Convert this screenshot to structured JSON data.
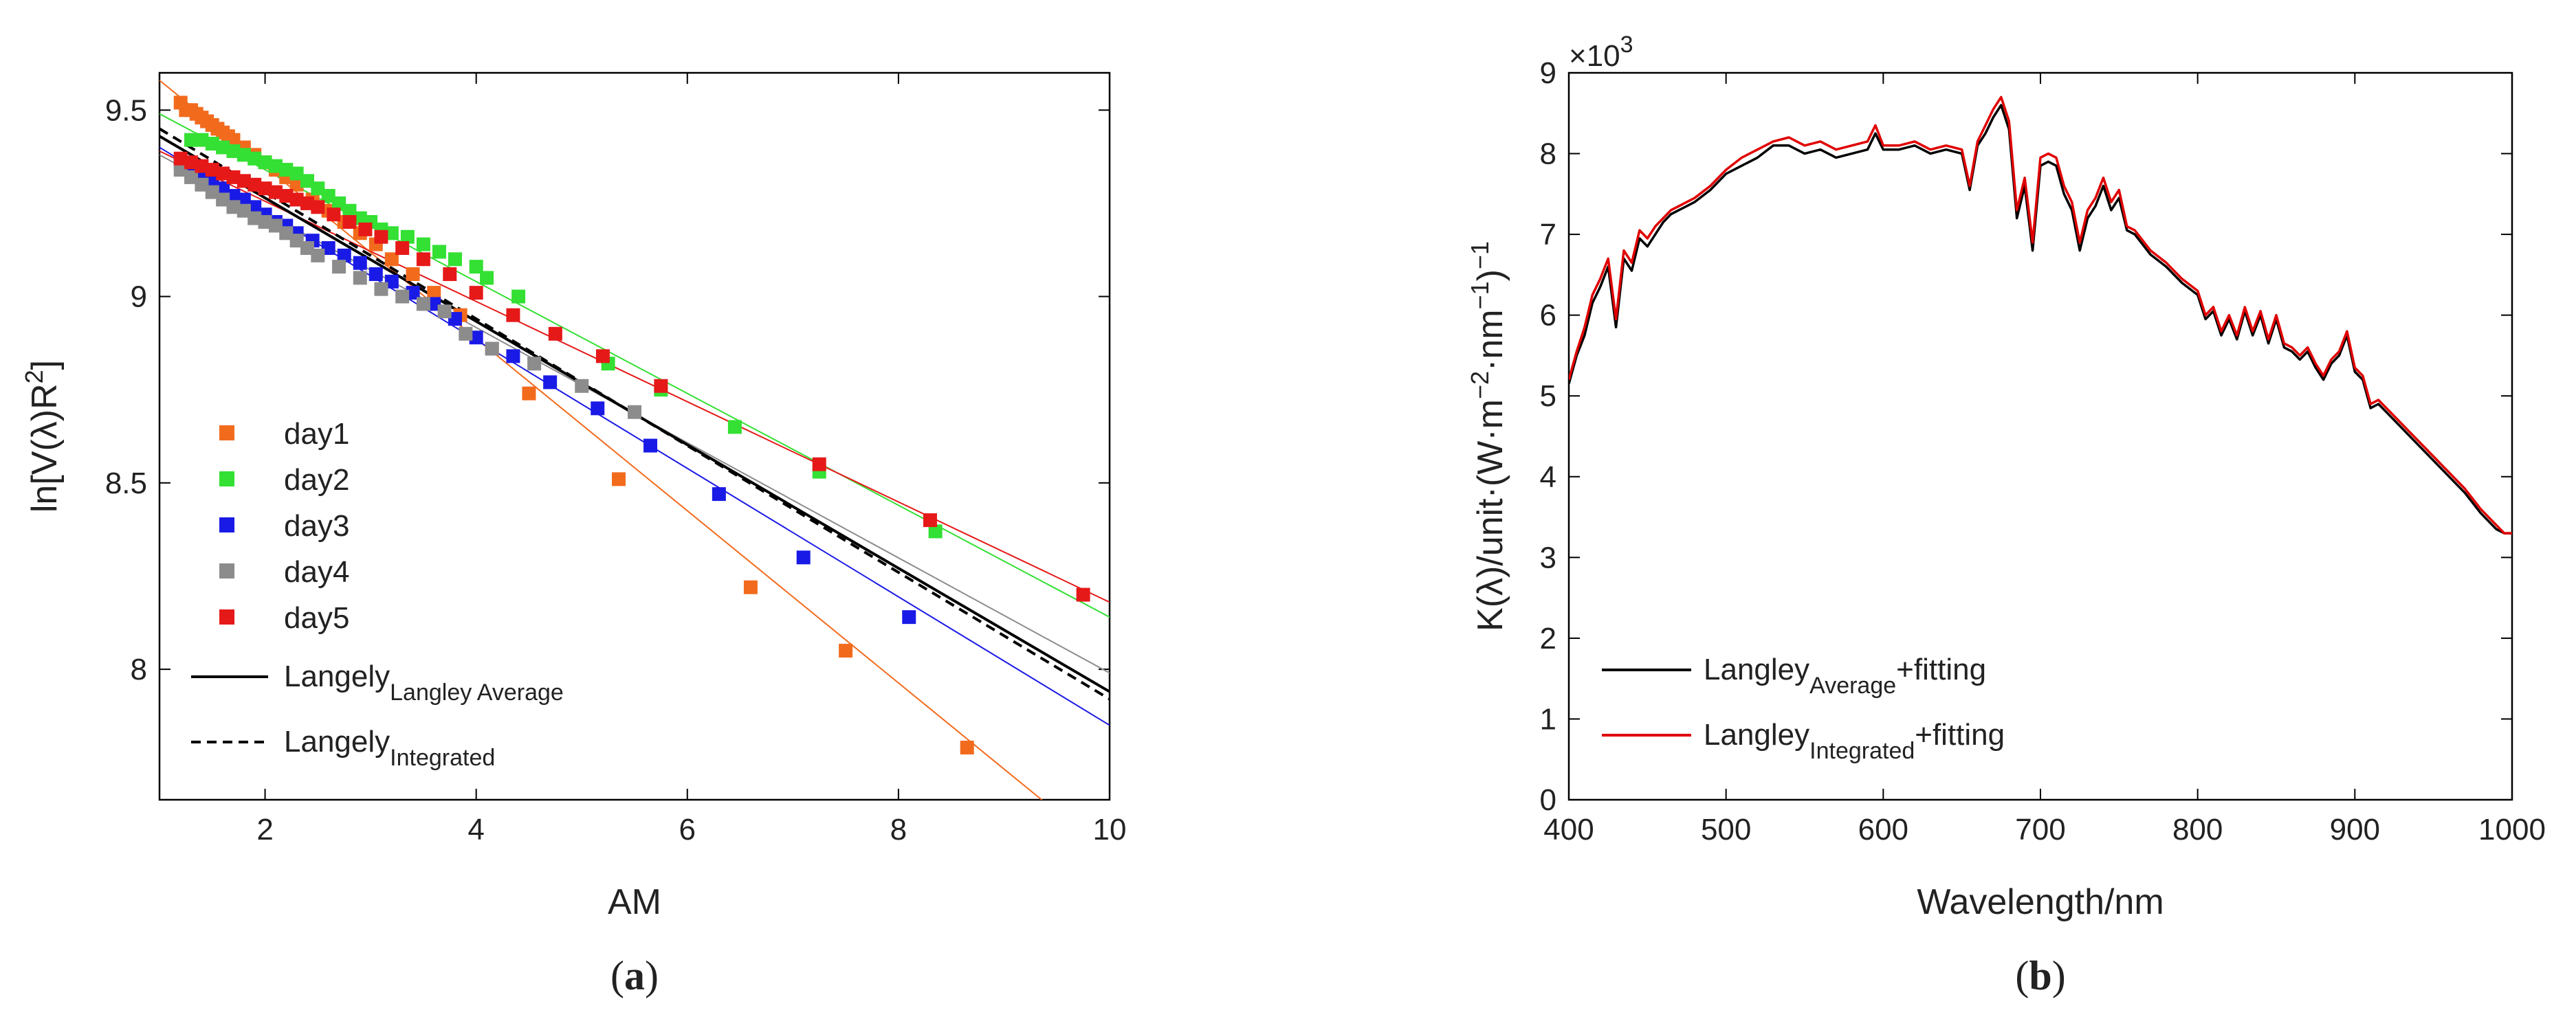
{
  "chart_data": [
    {
      "type": "scatter",
      "panel_label": "a",
      "xlabel": "AM",
      "ylabel": "ln[V(λ)R²]",
      "ylabel_parts": {
        "main": "ln[V(λ)R",
        "sup": "2",
        "end": "]"
      },
      "xlim": [
        1,
        10
      ],
      "ylim": [
        7.65,
        9.6
      ],
      "xticks": [
        2,
        4,
        6,
        8,
        10
      ],
      "yticks": [
        8,
        8.5,
        9,
        9.5
      ],
      "grid": false,
      "legend_position": "lower-left",
      "series": [
        {
          "name": "day1",
          "color": "#f26b1d",
          "marker": "square",
          "x": [
            1.2,
            1.25,
            1.3,
            1.35,
            1.4,
            1.45,
            1.5,
            1.55,
            1.6,
            1.65,
            1.7,
            1.8,
            1.9,
            2.0,
            2.1,
            2.2,
            2.3,
            2.45,
            2.6,
            2.75,
            2.9,
            3.05,
            3.2,
            3.4,
            3.6,
            3.85,
            4.15,
            4.5,
            5.35,
            6.6,
            7.5,
            8.65
          ],
          "y": [
            9.52,
            9.5,
            9.5,
            9.49,
            9.48,
            9.47,
            9.46,
            9.45,
            9.44,
            9.43,
            9.42,
            9.4,
            9.38,
            9.36,
            9.34,
            9.32,
            9.3,
            9.26,
            9.23,
            9.2,
            9.17,
            9.14,
            9.1,
            9.06,
            9.01,
            8.95,
            8.86,
            8.74,
            8.51,
            8.22,
            8.05,
            7.79
          ],
          "fit": [
            [
              1.0,
              9.58
            ],
            [
              9.4,
              7.64
            ]
          ]
        },
        {
          "name": "day2",
          "color": "#33e033",
          "marker": "square",
          "x": [
            1.3,
            1.4,
            1.5,
            1.6,
            1.7,
            1.8,
            1.9,
            2.0,
            2.1,
            2.2,
            2.3,
            2.4,
            2.5,
            2.6,
            2.7,
            2.8,
            2.9,
            3.0,
            3.1,
            3.2,
            3.35,
            3.5,
            3.65,
            3.8,
            4.0,
            4.1,
            4.4,
            5.25,
            5.75,
            6.45,
            7.25,
            8.35
          ],
          "y": [
            9.42,
            9.42,
            9.41,
            9.4,
            9.39,
            9.38,
            9.37,
            9.36,
            9.35,
            9.34,
            9.33,
            9.31,
            9.29,
            9.27,
            9.25,
            9.23,
            9.21,
            9.2,
            9.18,
            9.17,
            9.16,
            9.14,
            9.12,
            9.1,
            9.08,
            9.05,
            9.0,
            8.82,
            8.75,
            8.65,
            8.53,
            8.37
          ],
          "fit": [
            [
              1.0,
              9.49
            ],
            [
              10.0,
              8.14
            ]
          ]
        },
        {
          "name": "day3",
          "color": "#1a1ae6",
          "marker": "square",
          "x": [
            1.2,
            1.3,
            1.4,
            1.5,
            1.6,
            1.7,
            1.8,
            1.9,
            2.0,
            2.1,
            2.2,
            2.3,
            2.45,
            2.6,
            2.75,
            2.9,
            3.05,
            3.2,
            3.4,
            3.6,
            3.8,
            4.0,
            4.35,
            4.7,
            5.15,
            5.65,
            6.3,
            7.1,
            8.1
          ],
          "y": [
            9.36,
            9.34,
            9.33,
            9.31,
            9.29,
            9.27,
            9.26,
            9.24,
            9.22,
            9.2,
            9.19,
            9.17,
            9.15,
            9.13,
            9.11,
            9.09,
            9.06,
            9.04,
            9.01,
            8.98,
            8.94,
            8.89,
            8.84,
            8.77,
            8.7,
            8.6,
            8.47,
            8.3,
            8.14
          ],
          "fit": [
            [
              1.0,
              9.4
            ],
            [
              10.0,
              7.85
            ]
          ]
        },
        {
          "name": "day4",
          "color": "#8c8c8c",
          "marker": "square",
          "x": [
            1.2,
            1.3,
            1.4,
            1.5,
            1.6,
            1.7,
            1.8,
            1.9,
            2.0,
            2.1,
            2.2,
            2.3,
            2.4,
            2.5,
            2.7,
            2.9,
            3.1,
            3.3,
            3.5,
            3.7,
            3.9,
            4.15,
            4.55,
            5.0,
            5.5
          ],
          "y": [
            9.34,
            9.32,
            9.3,
            9.28,
            9.26,
            9.24,
            9.23,
            9.21,
            9.2,
            9.19,
            9.17,
            9.15,
            9.13,
            9.11,
            9.08,
            9.05,
            9.02,
            9.0,
            8.98,
            8.96,
            8.9,
            8.86,
            8.82,
            8.76,
            8.69
          ],
          "fit": [
            [
              1.0,
              9.38
            ],
            [
              10.0,
              7.99
            ]
          ]
        },
        {
          "name": "day5",
          "color": "#e61919",
          "marker": "square",
          "x": [
            1.2,
            1.3,
            1.4,
            1.5,
            1.6,
            1.7,
            1.8,
            1.9,
            2.0,
            2.1,
            2.2,
            2.3,
            2.4,
            2.5,
            2.65,
            2.8,
            2.95,
            3.1,
            3.3,
            3.5,
            3.75,
            4.0,
            4.35,
            4.75,
            5.2,
            5.75,
            7.25,
            8.3,
            9.75
          ],
          "y": [
            9.37,
            9.36,
            9.35,
            9.34,
            9.33,
            9.32,
            9.31,
            9.3,
            9.29,
            9.28,
            9.27,
            9.26,
            9.25,
            9.24,
            9.22,
            9.2,
            9.18,
            9.16,
            9.13,
            9.1,
            9.06,
            9.01,
            8.95,
            8.9,
            8.84,
            8.76,
            8.55,
            8.4,
            8.2
          ],
          "fit": [
            [
              1.0,
              9.39
            ],
            [
              10.0,
              8.18
            ]
          ]
        }
      ],
      "lines": [
        {
          "name": "Langely",
          "subscript": "Langley Average",
          "color": "#000000",
          "dash": "solid",
          "x": [
            1.0,
            10.0
          ],
          "y": [
            9.43,
            7.94
          ]
        },
        {
          "name": "Langely",
          "subscript": "Integrated",
          "color": "#000000",
          "dash": "dashed",
          "x": [
            1.0,
            10.0
          ],
          "y": [
            9.45,
            7.92
          ]
        }
      ]
    },
    {
      "type": "line",
      "panel_label": "b",
      "xlabel": "Wavelength/nm",
      "ylabel": "K(λ)/unit·(W·m⁻²·nm⁻¹)⁻¹",
      "ylabel_parts": {
        "a": "K(λ)/unit·(W·m",
        "s1": "−2",
        "b": "·nm",
        "s2": "−1",
        "c": ")",
        "s3": "−1"
      },
      "xlim": [
        400,
        1000
      ],
      "ylim": [
        0,
        9
      ],
      "xticks": [
        400,
        500,
        600,
        700,
        800,
        900,
        1000
      ],
      "yticks": [
        0,
        1,
        2,
        3,
        4,
        5,
        6,
        7,
        8,
        9
      ],
      "y_multiplier": "×10",
      "y_multiplier_exp": "3",
      "grid": false,
      "legend_position": "lower-left",
      "series": [
        {
          "name": "Langley",
          "subscript": "Average",
          "suffix": "+fitting",
          "color": "#000000",
          "x": [
            400,
            405,
            410,
            415,
            420,
            425,
            430,
            435,
            440,
            445,
            450,
            455,
            460,
            465,
            470,
            475,
            480,
            490,
            500,
            510,
            520,
            530,
            540,
            550,
            560,
            570,
            580,
            590,
            595,
            600,
            610,
            620,
            630,
            640,
            650,
            655,
            660,
            665,
            670,
            675,
            680,
            685,
            690,
            695,
            700,
            705,
            710,
            715,
            720,
            725,
            730,
            735,
            740,
            745,
            750,
            755,
            760,
            770,
            780,
            790,
            800,
            805,
            810,
            815,
            820,
            825,
            830,
            835,
            840,
            845,
            850,
            855,
            860,
            865,
            870,
            875,
            880,
            885,
            890,
            895,
            900,
            905,
            910,
            915,
            920,
            930,
            940,
            950,
            960,
            970,
            980,
            990,
            995,
            1000
          ],
          "y": [
            5.15,
            5.5,
            5.75,
            6.15,
            6.35,
            6.6,
            5.85,
            6.7,
            6.55,
            6.95,
            6.85,
            7.0,
            7.15,
            7.25,
            7.3,
            7.35,
            7.4,
            7.55,
            7.75,
            7.85,
            7.95,
            8.1,
            8.1,
            8.0,
            8.05,
            7.95,
            8.0,
            8.05,
            8.25,
            8.05,
            8.05,
            8.1,
            8.0,
            8.05,
            8.0,
            7.55,
            8.1,
            8.25,
            8.45,
            8.6,
            8.3,
            7.2,
            7.6,
            6.8,
            7.85,
            7.9,
            7.85,
            7.5,
            7.3,
            6.8,
            7.2,
            7.35,
            7.6,
            7.3,
            7.45,
            7.05,
            7.0,
            6.75,
            6.6,
            6.4,
            6.25,
            5.95,
            6.05,
            5.75,
            5.95,
            5.7,
            6.05,
            5.75,
            6.0,
            5.65,
            5.95,
            5.6,
            5.55,
            5.45,
            5.55,
            5.35,
            5.2,
            5.4,
            5.5,
            5.75,
            5.3,
            5.2,
            4.85,
            4.9,
            4.8,
            4.6,
            4.4,
            4.2,
            4.0,
            3.8,
            3.55,
            3.35,
            3.3,
            3.3
          ]
        },
        {
          "name": "Langley",
          "subscript": "Integrated",
          "suffix": "+fitting",
          "color": "#e00000",
          "x": [
            400,
            405,
            410,
            415,
            420,
            425,
            430,
            435,
            440,
            445,
            450,
            455,
            460,
            465,
            470,
            475,
            480,
            490,
            500,
            510,
            520,
            530,
            540,
            550,
            560,
            570,
            580,
            590,
            595,
            600,
            610,
            620,
            630,
            640,
            650,
            655,
            660,
            665,
            670,
            675,
            680,
            685,
            690,
            695,
            700,
            705,
            710,
            715,
            720,
            725,
            730,
            735,
            740,
            745,
            750,
            755,
            760,
            770,
            780,
            790,
            800,
            805,
            810,
            815,
            820,
            825,
            830,
            835,
            840,
            845,
            850,
            855,
            860,
            865,
            870,
            875,
            880,
            885,
            890,
            895,
            900,
            905,
            910,
            915,
            920,
            930,
            940,
            950,
            960,
            970,
            980,
            990,
            995,
            1000
          ],
          "y": [
            5.2,
            5.55,
            5.85,
            6.25,
            6.45,
            6.7,
            5.95,
            6.8,
            6.65,
            7.05,
            6.95,
            7.1,
            7.2,
            7.3,
            7.35,
            7.4,
            7.45,
            7.6,
            7.8,
            7.95,
            8.05,
            8.15,
            8.2,
            8.1,
            8.15,
            8.05,
            8.1,
            8.15,
            8.35,
            8.1,
            8.1,
            8.15,
            8.05,
            8.1,
            8.05,
            7.6,
            8.15,
            8.35,
            8.55,
            8.7,
            8.4,
            7.3,
            7.7,
            6.9,
            7.95,
            8.0,
            7.95,
            7.6,
            7.4,
            6.9,
            7.3,
            7.45,
            7.7,
            7.4,
            7.55,
            7.1,
            7.05,
            6.8,
            6.65,
            6.45,
            6.3,
            6.0,
            6.1,
            5.8,
            6.0,
            5.75,
            6.1,
            5.8,
            6.05,
            5.7,
            6.0,
            5.65,
            5.6,
            5.5,
            5.6,
            5.4,
            5.25,
            5.45,
            5.55,
            5.8,
            5.35,
            5.25,
            4.9,
            4.95,
            4.85,
            4.65,
            4.45,
            4.25,
            4.05,
            3.85,
            3.6,
            3.4,
            3.3,
            3.3
          ]
        }
      ]
    }
  ]
}
